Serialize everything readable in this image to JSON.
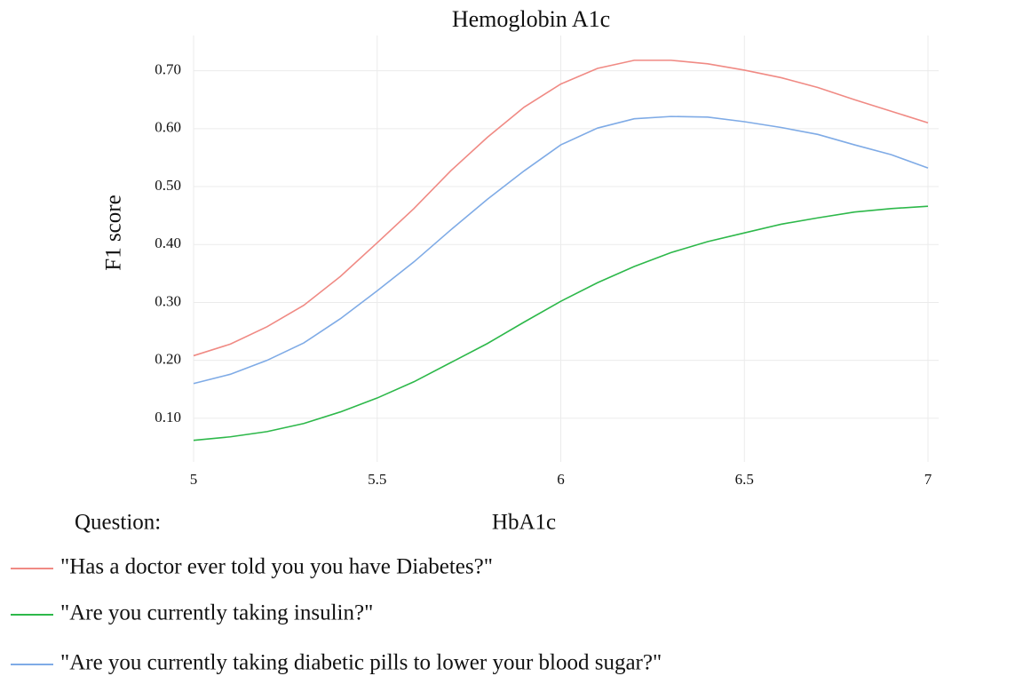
{
  "chart_data": {
    "type": "line",
    "title": "Hemoglobin A1c",
    "xlabel": "HbA1c",
    "ylabel": "F1 score",
    "legend_title": "Question:",
    "x": [
      5.0,
      5.1,
      5.2,
      5.3,
      5.4,
      5.5,
      5.6,
      5.7,
      5.8,
      5.9,
      6.0,
      6.1,
      6.2,
      6.3,
      6.4,
      6.5,
      6.6,
      6.7,
      6.8,
      6.9,
      7.0
    ],
    "series": [
      {
        "name": "\"Has a doctor ever told you you have Diabetes?\"",
        "color": "#f08a84",
        "values": [
          0.208,
          0.228,
          0.258,
          0.295,
          0.345,
          0.403,
          0.462,
          0.527,
          0.585,
          0.637,
          0.677,
          0.704,
          0.718,
          0.718,
          0.712,
          0.701,
          0.688,
          0.671,
          0.65,
          0.63,
          0.61
        ]
      },
      {
        "name": "\"Are you currently taking insulin?\"",
        "color": "#2db84a",
        "values": [
          0.062,
          0.068,
          0.077,
          0.091,
          0.111,
          0.135,
          0.163,
          0.196,
          0.229,
          0.266,
          0.302,
          0.334,
          0.362,
          0.386,
          0.405,
          0.42,
          0.435,
          0.446,
          0.456,
          0.462,
          0.466
        ]
      },
      {
        "name": "\"Are you currently taking diabetic pills to lower your blood sugar?\"",
        "color": "#7fabe6",
        "values": [
          0.16,
          0.176,
          0.2,
          0.23,
          0.272,
          0.32,
          0.37,
          0.425,
          0.478,
          0.527,
          0.572,
          0.601,
          0.617,
          0.621,
          0.62,
          0.612,
          0.602,
          0.59,
          0.572,
          0.555,
          0.532
        ]
      }
    ],
    "xlim": [
      5,
      7
    ],
    "xticks": [
      5,
      5.5,
      6,
      6.5,
      7
    ],
    "ylim": [
      0.04,
      0.75
    ],
    "yticks": [
      {
        "value": 0.1,
        "label": "0.10"
      },
      {
        "value": 0.2,
        "label": "0.20"
      },
      {
        "value": 0.3,
        "label": "0.30"
      },
      {
        "value": 0.4,
        "label": "0.40"
      },
      {
        "value": 0.5,
        "label": "0.50"
      },
      {
        "value": 0.6,
        "label": "0.60"
      },
      {
        "value": 0.7,
        "label": "0.70"
      }
    ],
    "grid": true
  }
}
